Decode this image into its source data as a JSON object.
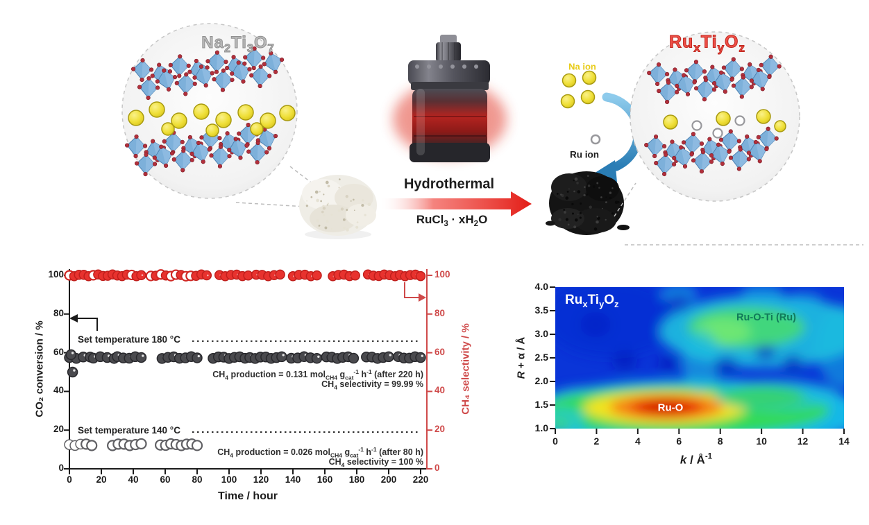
{
  "figure": {
    "scheme": {
      "precursor_label": [
        {
          "t": "Na"
        },
        {
          "t": "2",
          "sub": true
        },
        {
          "t": "Ti"
        },
        {
          "t": "3",
          "sub": true
        },
        {
          "t": "O"
        },
        {
          "t": "7",
          "sub": true
        }
      ],
      "product_label": [
        {
          "t": "Ru"
        },
        {
          "t": "x",
          "sub": true
        },
        {
          "t": "Ti"
        },
        {
          "t": "y",
          "sub": true
        },
        {
          "t": "O"
        },
        {
          "t": "z",
          "sub": true
        }
      ],
      "process_label": "Hydrothermal",
      "reagent_label": [
        {
          "t": "RuCl"
        },
        {
          "t": "3",
          "sub": true
        },
        {
          "t": " · xH"
        },
        {
          "t": "2",
          "sub": true
        },
        {
          "t": "O"
        }
      ],
      "na_ion_label": "Na ion",
      "ru_ion_label": "Ru ion",
      "colors": {
        "na_sphere_yellow": "#f2e13c",
        "polyhedra_blue": "#7db0da",
        "oxygen_red": "#b1303c",
        "precursor_label_gray": "#b9b9b9",
        "product_label_red": "#ef5048",
        "arrow_red": "#e31c16"
      }
    }
  },
  "chart_data": [
    {
      "type": "scatter",
      "xlabel": "Time / hour",
      "ylabel_left": "CO₂ conversion / %",
      "ylabel_right": "CH₄ selectivity / %",
      "xlim": [
        0,
        220
      ],
      "xticks": [
        0,
        20,
        40,
        60,
        80,
        100,
        120,
        140,
        160,
        180,
        200,
        220
      ],
      "ylim": [
        0,
        100
      ],
      "yticks": [
        0,
        20,
        40,
        60,
        80,
        100
      ],
      "axis_right_color": "#cf4a4a",
      "series": [
        {
          "name": "CH4 selectivity (180 C)",
          "axis": "right",
          "style": "filled-red",
          "color": "#e8322e",
          "ring": "#c01f1c",
          "y": 100,
          "clusters": [
            [
              0,
              45
            ],
            [
              51,
              73
            ],
            [
              76,
              86
            ],
            [
              94,
              112
            ],
            [
              117,
              132
            ],
            [
              140,
              155
            ],
            [
              165,
              179
            ],
            [
              187,
              204
            ],
            [
              207,
              220
            ]
          ],
          "open_fraction": {
            "0": 0.15,
            "1": 0.55,
            "2": 0.1
          }
        },
        {
          "name": "CO2 conversion (180 C)",
          "axis": "left",
          "style": "filled-gray",
          "color": "#4a4a4e",
          "ring": "#28282c",
          "y": 57.5,
          "clusters": [
            [
              0,
              13
            ],
            [
              15,
              28
            ],
            [
              30,
              45
            ],
            [
              58,
              80
            ],
            [
              90,
              110
            ],
            [
              113,
              133
            ],
            [
              139,
              155
            ],
            [
              161,
              178
            ],
            [
              186,
              200
            ],
            [
              206,
              220
            ]
          ],
          "points": [
            [
              1,
              59
            ],
            [
              2,
              50
            ]
          ]
        },
        {
          "name": "CO2 conversion (140 C)",
          "axis": "left",
          "style": "open-gray",
          "color": "#ffffff",
          "ring": "#606064",
          "y": 12.5,
          "clusters": [
            [
              0,
              14
            ],
            [
              27,
              45
            ],
            [
              57,
              80
            ]
          ],
          "first_filled": 3
        }
      ],
      "reference_lines": [
        {
          "label": "Set temperature 180 °C",
          "y": 66
        },
        {
          "label": "Set temperature 140 °C",
          "y": 19
        }
      ],
      "annotations": [
        {
          "rich": [
            {
              "t": "CH"
            },
            {
              "t": "4",
              "sub": true
            },
            {
              "t": " production =  0.131 mol"
            },
            {
              "t": "CH4",
              "sub": true
            },
            {
              "t": " g"
            },
            {
              "t": "cat",
              "sub": true
            },
            {
              "t": "-1",
              "sup": true
            },
            {
              "t": " h"
            },
            {
              "t": "-1",
              "sup": true
            },
            {
              "t": " (after 220 h)"
            }
          ]
        },
        {
          "rich": [
            {
              "t": "CH"
            },
            {
              "t": "4",
              "sub": true
            },
            {
              "t": " selectivity = 99.99 %"
            }
          ]
        },
        {
          "rich": [
            {
              "t": "CH"
            },
            {
              "t": "4",
              "sub": true
            },
            {
              "t": " production =  0.026 mol"
            },
            {
              "t": "CH4",
              "sub": true
            },
            {
              "t": " g"
            },
            {
              "t": "cat",
              "sub": true
            },
            {
              "t": "-1",
              "sup": true
            },
            {
              "t": " h"
            },
            {
              "t": "-1",
              "sup": true
            },
            {
              "t": " (after 80 h)"
            }
          ]
        },
        {
          "rich": [
            {
              "t": "CH"
            },
            {
              "t": "4",
              "sub": true
            },
            {
              "t": " selectivity = 100 %"
            }
          ]
        }
      ]
    },
    {
      "type": "heatmap",
      "sample_label": [
        {
          "t": "Ru"
        },
        {
          "t": "x",
          "sub": true
        },
        {
          "t": "Ti"
        },
        {
          "t": "y",
          "sub": true
        },
        {
          "t": "O"
        },
        {
          "t": "z",
          "sub": true
        }
      ],
      "xlabel_rich": [
        {
          "t": "k",
          "i": true
        },
        {
          "t": " / Å"
        },
        {
          "t": "-1",
          "sup": true
        }
      ],
      "ylabel_rich": [
        {
          "t": "R",
          "i": true
        },
        {
          "t": " + α / Å"
        }
      ],
      "xlim": [
        0,
        14
      ],
      "xticks": [
        0,
        2,
        4,
        6,
        8,
        10,
        12,
        14
      ],
      "ylim": [
        1.0,
        4.0
      ],
      "yticks": [
        "1.0",
        "1.5",
        "2.0",
        "2.5",
        "3.0",
        "3.5",
        "4.0"
      ],
      "colormap": "jet",
      "background_color": "#0a35d8",
      "features": [
        {
          "label": "Ru-O",
          "k": 5.5,
          "r_plus_a": 1.45,
          "intensity": "high"
        },
        {
          "label": "Ru-O-Ti (Ru)",
          "k": 9.8,
          "r_plus_a": 3.1,
          "intensity": "medium"
        }
      ]
    }
  ]
}
